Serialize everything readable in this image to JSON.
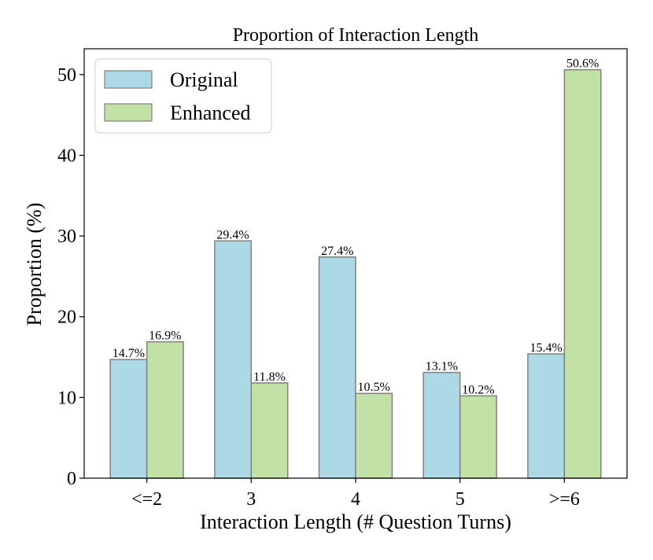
{
  "chart_data": {
    "type": "bar",
    "title": "Proportion of Interaction Length",
    "xlabel": "Interaction Length (# Question Turns)",
    "ylabel": "Proportion (%)",
    "categories": [
      "<=2",
      "3",
      "4",
      "5",
      ">=6"
    ],
    "ylim": [
      0,
      53.2
    ],
    "yticks": [
      0,
      10,
      20,
      30,
      40,
      50
    ],
    "legend_position": "top-left",
    "series": [
      {
        "name": "Original",
        "color": "#add8e6",
        "values": [
          14.7,
          29.4,
          27.4,
          13.1,
          15.4
        ],
        "labels": [
          "14.7%",
          "29.4%",
          "27.4%",
          "13.1%",
          "15.4%"
        ]
      },
      {
        "name": "Enhanced",
        "color": "#c1e1a6",
        "values": [
          16.9,
          11.8,
          10.5,
          10.2,
          50.6
        ],
        "labels": [
          "16.9%",
          "11.8%",
          "10.5%",
          "10.2%",
          "50.6%"
        ]
      }
    ]
  }
}
